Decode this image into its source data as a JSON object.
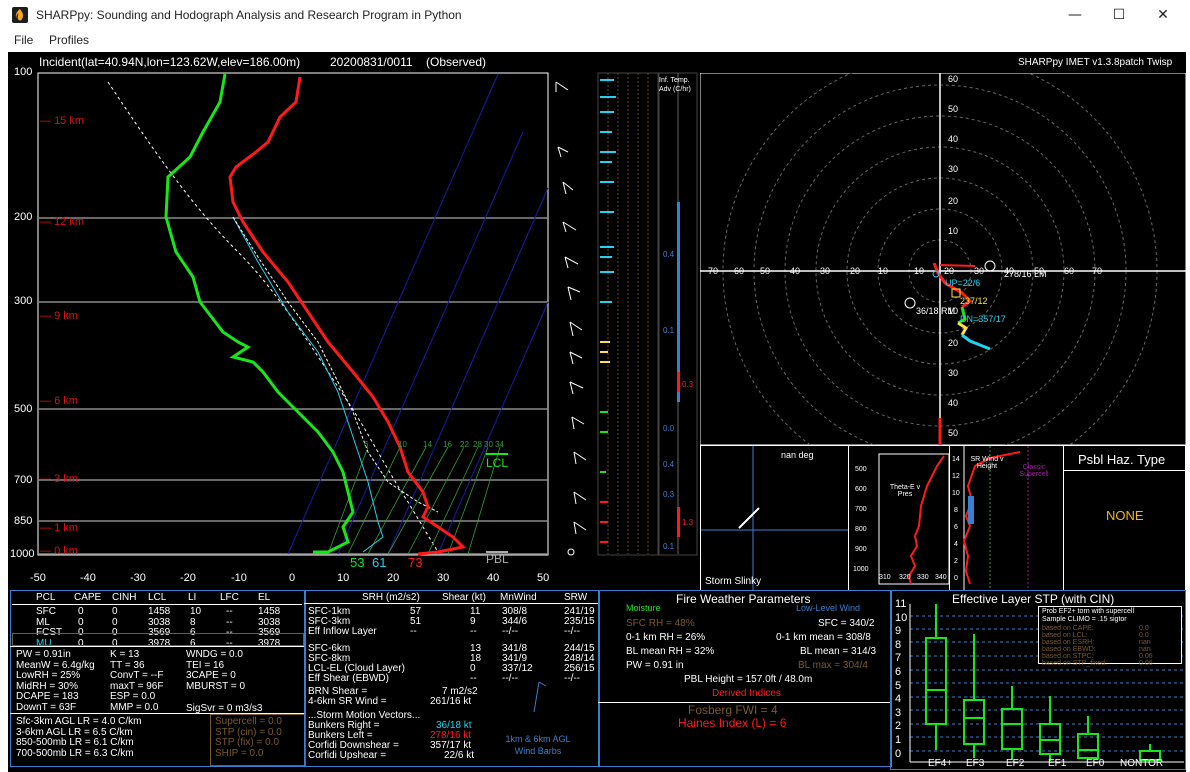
{
  "window": {
    "title": "SHARPpy: Sounding and Hodograph Analysis and Research Program in Python",
    "minimize": "—",
    "maximize": "☐",
    "close": "✕"
  },
  "menu": {
    "file": "File",
    "profiles": "Profiles"
  },
  "header": {
    "location": "Incident(lat=40.94N,lon=123.62W,elev=186.00m)",
    "datetime": "20200831/0011",
    "type": "(Observed)",
    "version": "SHARPpy IMET v1.3.8patch Twisp"
  },
  "skewt": {
    "pressure_labels": [
      "100",
      "200",
      "300",
      "500",
      "700",
      "850",
      "1000"
    ],
    "height_labels": [
      "15 km",
      "12 km",
      "9 km",
      "6 km",
      "3 km",
      "1 km",
      "0 km"
    ],
    "temp_labels": [
      "-50",
      "-40",
      "-30",
      "-20",
      "-10",
      "0",
      "10",
      "20",
      "30",
      "40",
      "50"
    ],
    "mixing_labels": [
      "6",
      "10",
      "14",
      "16",
      "22",
      "28",
      "30",
      "34"
    ],
    "lcl_label": "LCL",
    "pbl_label": "PBL",
    "sfc_td": "53",
    "sfc_tw": "61",
    "sfc_t": "73",
    "tadv_title": "Inf. Temp. Adv (C/hr)",
    "tadv_values": [
      "0.4",
      "0.1",
      "0.3",
      "0.0",
      "0.4",
      "0.3",
      "1.3",
      "0.1"
    ]
  },
  "hodo": {
    "axis_labels_h": [
      "70",
      "60",
      "50",
      "40",
      "30",
      "20",
      "10",
      "10",
      "20",
      "30",
      "40",
      "50",
      "60",
      "70"
    ],
    "axis_labels_v": [
      "60",
      "50",
      "40",
      "30",
      "20",
      "10",
      "10",
      "20",
      "30",
      "40",
      "50"
    ],
    "lm": "278/16 LM",
    "rm": "36/18 RM",
    "up": "UP=22/6",
    "l237": "237/12",
    "dn": "DN=357/17"
  },
  "slinky": {
    "nan": "nan deg",
    "label": "Storm Slinky"
  },
  "thetae": {
    "title": "Theta-E v Pres",
    "pres": [
      "500",
      "600",
      "700",
      "800",
      "900",
      "1000"
    ],
    "theta": [
      "310",
      "320",
      "330",
      "340"
    ]
  },
  "srwind": {
    "title": "SR Wind v Height",
    "classic": "Classic Supercell",
    "heights": [
      "14",
      "12",
      "10",
      "8",
      "6",
      "4",
      "2",
      "0"
    ]
  },
  "haz": {
    "title": "Psbl Haz. Type",
    "value": "NONE"
  },
  "parcels": {
    "headers": [
      "PCL",
      "CAPE",
      "CINH",
      "LCL",
      "LI",
      "LFC",
      "EL"
    ],
    "rows": [
      [
        "SFC",
        "0",
        "0",
        "1458",
        "10",
        "--",
        "1458"
      ],
      [
        "ML",
        "0",
        "0",
        "3038",
        "8",
        "--",
        "3038"
      ],
      [
        "FCST",
        "0",
        "0",
        "3569",
        "6",
        "--",
        "3569"
      ],
      [
        "MU",
        "0",
        "0",
        "3978",
        "6",
        "--",
        "3978"
      ]
    ]
  },
  "thermo": {
    "col1": [
      "PW = 0.91in",
      "MeanW = 6.4g/kg",
      "LowRH = 25%",
      "MidRH = 30%",
      "DCAPE = 183",
      "DownT = 63F"
    ],
    "col2": [
      "K = 13",
      "TT = 36",
      "ConvT = --F",
      "maxT = 96F",
      "ESP = 0.0",
      "MMP = 0.0"
    ],
    "col3": [
      "WNDG = 0.0",
      "TEI = 16",
      "3CAPE = 0",
      "MBURST = 0",
      "",
      ""
    ],
    "sigsvr": "SigSvr = 0 m3/s3",
    "lapse": [
      "Sfc-3km AGL LR = 4.0 C/km",
      "3-6km AGL LR = 6.5 C/km",
      "850-500mb LR = 6.1 C/km",
      "700-500mb LR = 6.3 C/km"
    ],
    "composites": [
      "Supercell = 0.0",
      "STP (cin) = 0.0",
      "STP (fix) = 0.0",
      "SHIP = 0.0"
    ]
  },
  "kinematics": {
    "headers": [
      "SRH (m2/s2)",
      "Shear (kt)",
      "MnWind",
      "SRW"
    ],
    "rows": [
      [
        "SFC-1km",
        "57",
        "11",
        "308/8",
        "241/19"
      ],
      [
        "SFC-3km",
        "51",
        "9",
        "344/6",
        "235/15"
      ],
      [
        "Eff Inflow Layer",
        "--",
        "--",
        "--/--",
        "--/--"
      ],
      [
        "SFC-6km",
        "",
        "13",
        "341/8",
        "244/15"
      ],
      [
        "SFC-8km",
        "",
        "18",
        "341/9",
        "248/14"
      ],
      [
        "LCL-EL (Cloud Layer)",
        "",
        "0",
        "337/12",
        "256/15"
      ],
      [
        "Eff Shear (EBWD)",
        "",
        "--",
        "--/--",
        "--/--"
      ]
    ],
    "brn": "BRN Shear =",
    "brn_val": "7 m2/s2",
    "srwind4": "4-6km SR Wind =",
    "srwind4_val": "261/16 kt",
    "vectors": "...Storm Motion Vectors...",
    "motions": [
      [
        "Bunkers Right =",
        "36/18 kt"
      ],
      [
        "Bunkers Left =",
        "278/16 kt"
      ],
      [
        "Corfidi Downshear =",
        "357/17 kt"
      ],
      [
        "Corfidi Upshear =",
        "22/6 kt"
      ]
    ],
    "barbs_label": "1km & 6km AGL Wind Barbs"
  },
  "fire": {
    "title": "Fire Weather Parameters",
    "moisture": "Moisture",
    "llwind": "Low-Level Wind",
    "left": [
      "SFC RH = 48%",
      "0-1 km RH = 26%",
      "BL mean RH = 32%",
      "PW = 0.91 in"
    ],
    "right": [
      "SFC = 340/2",
      "0-1 km mean = 308/8",
      "BL mean = 314/3",
      "BL max = 304/4"
    ],
    "pbl": "PBL Height = 157.0ft / 48.0m",
    "derived": "Derived Indices",
    "fwi": "Fosberg FWI = 4",
    "haines": "Haines Index (L) = 6"
  },
  "stp": {
    "title": "Effective Layer STP (with CIN)",
    "yticks": [
      "11",
      "10",
      "9",
      "8",
      "7",
      "6",
      "5",
      "4",
      "3",
      "2",
      "1",
      "0"
    ],
    "cats": [
      "EF4+",
      "EF3",
      "EF2",
      "EF1",
      "EF0",
      "NONTOR"
    ],
    "legend_title": "Prob EF2+ torn with supercell",
    "legend_sub": "Sample CLIMO = .15 sigtor",
    "legend_rows": [
      [
        "based on CAPE:",
        "0.0"
      ],
      [
        "based on LCL:",
        "0.0"
      ],
      [
        "based on ESRH:",
        "nan"
      ],
      [
        "based on EBWD:",
        "nan"
      ],
      [
        "based on STPC:",
        "0.06"
      ],
      [
        "based on STP_fixed:",
        "0.06"
      ]
    ]
  },
  "colors": {
    "temp": "#ff1a1a",
    "dewp": "#19e619",
    "wetbulb": "#22d3ee",
    "parcel": "#ffffff",
    "accent": "#3a7fd0"
  }
}
